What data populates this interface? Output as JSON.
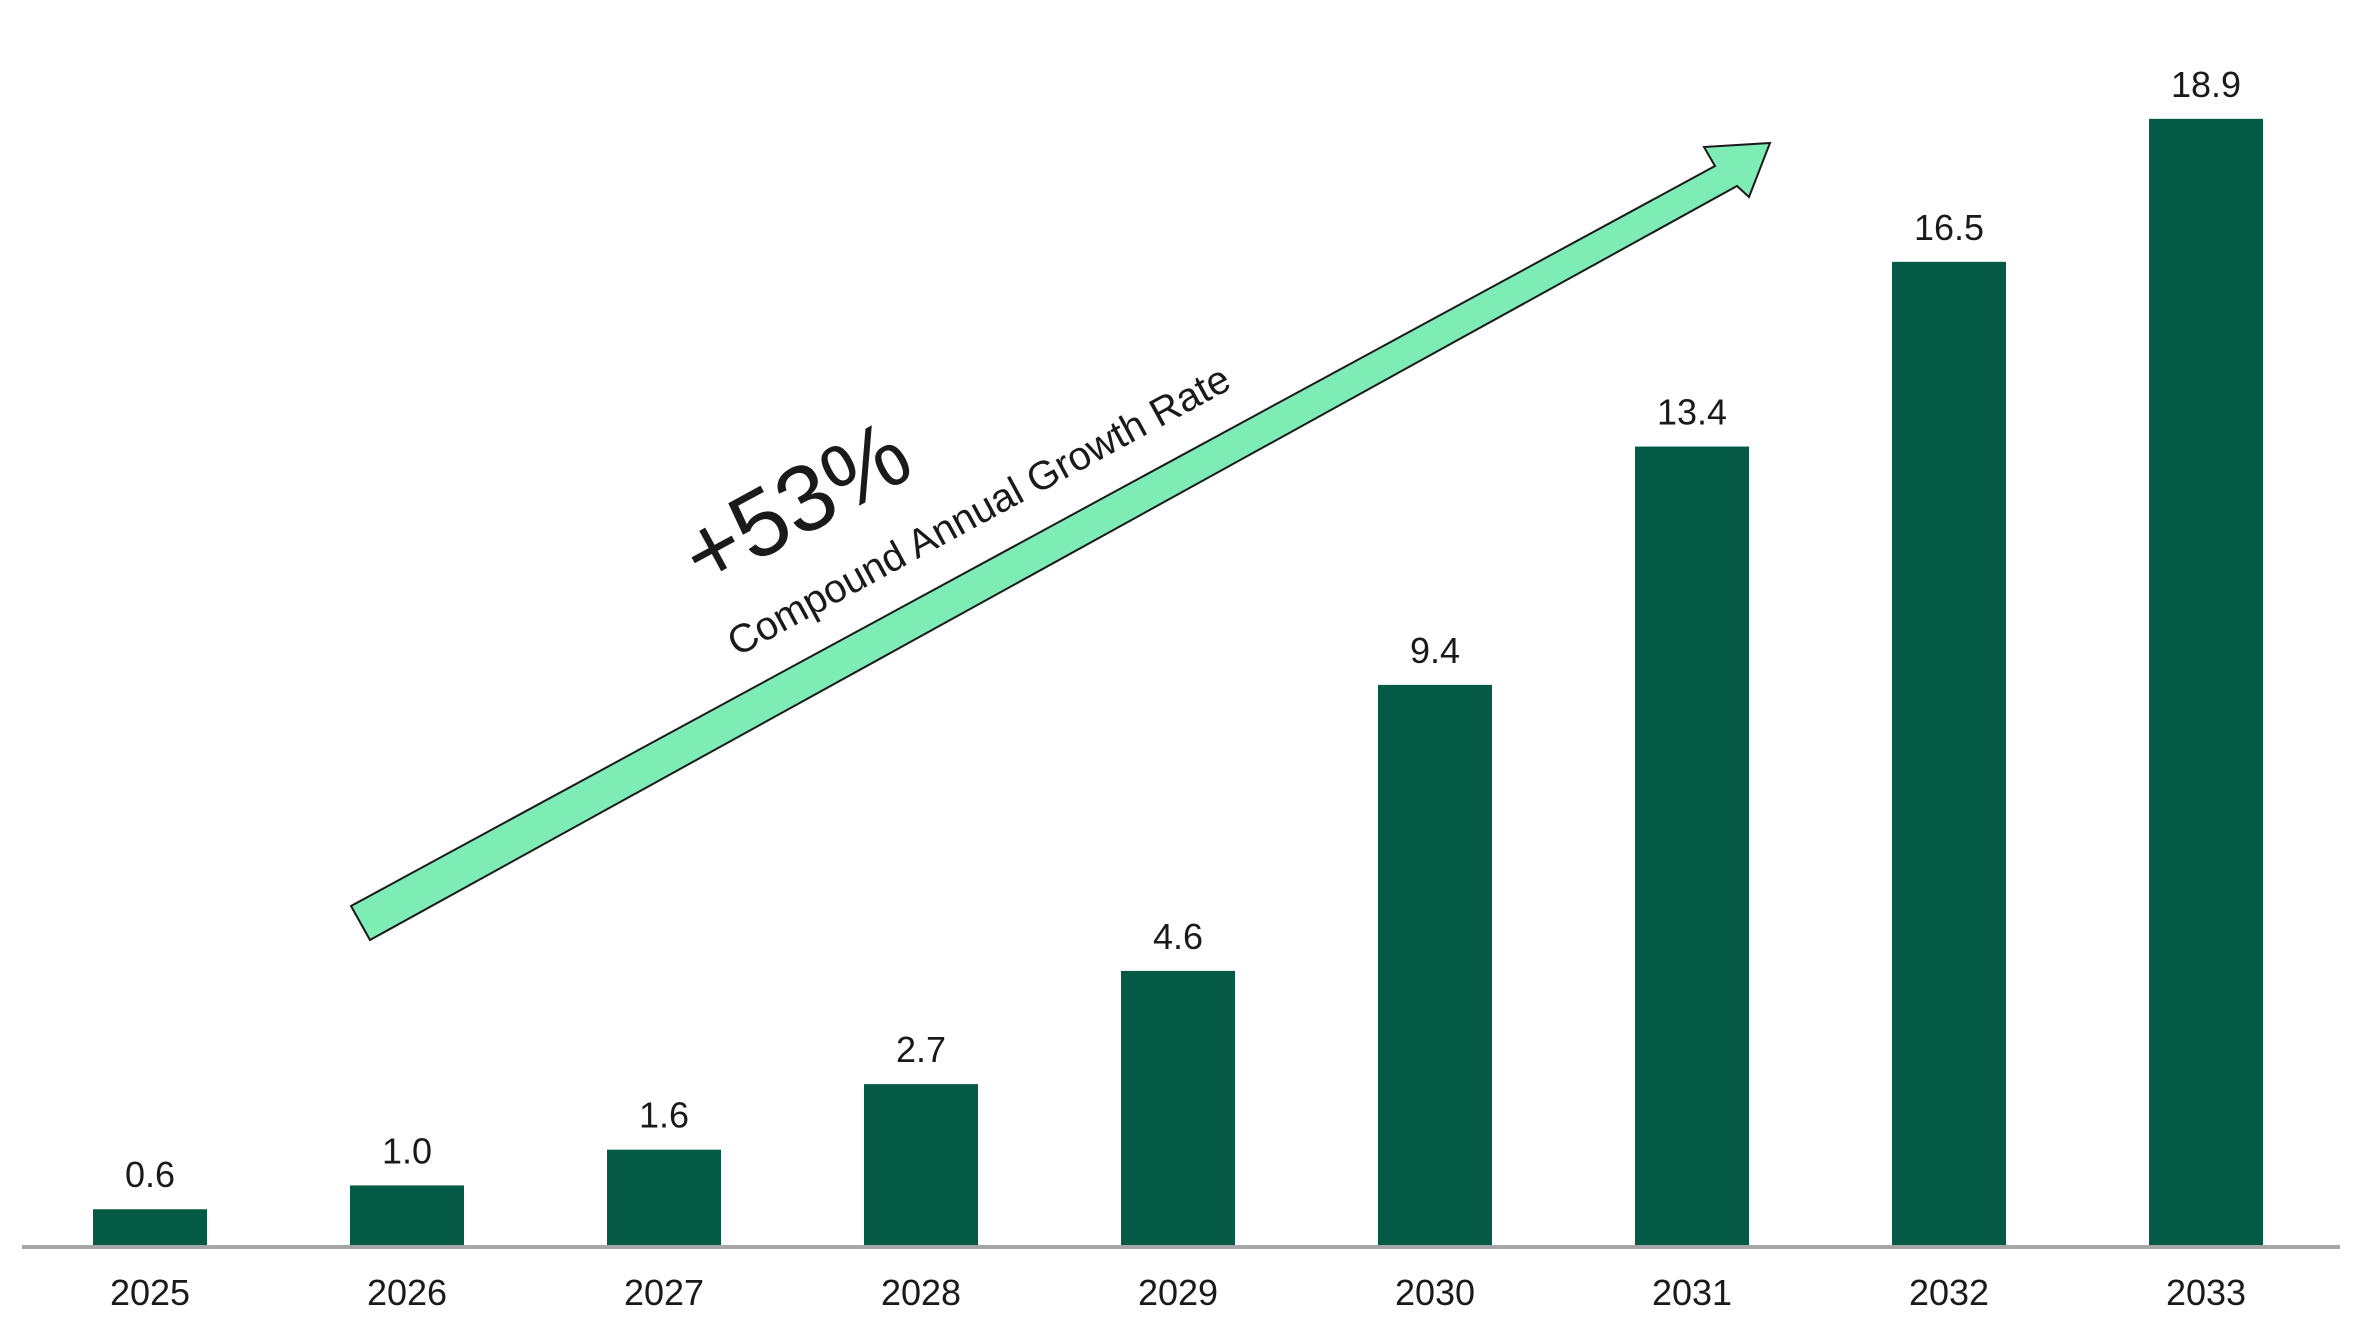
{
  "chart_data": {
    "type": "bar",
    "categories": [
      "2025",
      "2026",
      "2027",
      "2028",
      "2029",
      "2030",
      "2031",
      "2032",
      "2033"
    ],
    "values": [
      0.6,
      1.0,
      1.6,
      2.7,
      4.6,
      9.4,
      13.4,
      16.5,
      18.9
    ],
    "value_labels": [
      "0.6",
      "1.0",
      "1.6",
      "2.7",
      "4.6",
      "9.4",
      "13.4",
      "16.5",
      "18.9"
    ],
    "title": "",
    "xlabel": "",
    "ylabel": "",
    "ylim": [
      0,
      19.3
    ],
    "grid": false,
    "legend": "none",
    "bar_color": "#045a45",
    "baseline_color": "#a6a6a6",
    "annotation": {
      "value": "+53%",
      "label": "Compound Annual Growth Rate",
      "arrow_color": "#7eecb5",
      "arrow_outline": "#1a1a1a"
    }
  }
}
